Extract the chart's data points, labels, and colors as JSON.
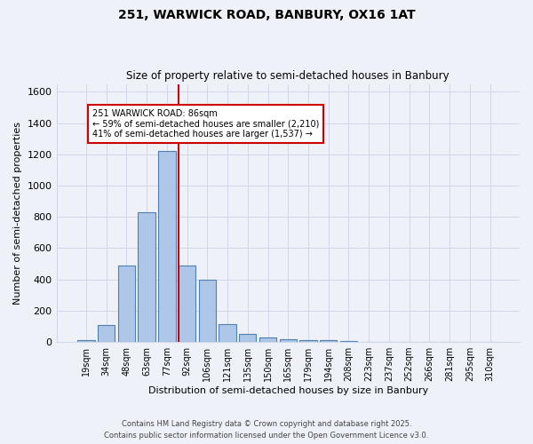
{
  "title1": "251, WARWICK ROAD, BANBURY, OX16 1AT",
  "title2": "Size of property relative to semi-detached houses in Banbury",
  "xlabel": "Distribution of semi-detached houses by size in Banbury",
  "ylabel": "Number of semi-detached properties",
  "categories": [
    "19sqm",
    "34sqm",
    "48sqm",
    "63sqm",
    "77sqm",
    "92sqm",
    "106sqm",
    "121sqm",
    "135sqm",
    "150sqm",
    "165sqm",
    "179sqm",
    "194sqm",
    "208sqm",
    "223sqm",
    "237sqm",
    "252sqm",
    "266sqm",
    "281sqm",
    "295sqm",
    "310sqm"
  ],
  "values": [
    10,
    110,
    490,
    830,
    1220,
    490,
    400,
    115,
    50,
    30,
    20,
    10,
    10,
    5,
    0,
    0,
    0,
    0,
    0,
    0,
    0
  ],
  "bar_color": "#aec6e8",
  "bar_edge_color": "#5080b0",
  "vline_x_idx": 5,
  "vline_color": "#cc0000",
  "annotation_title": "251 WARWICK ROAD: 86sqm",
  "annotation_line1": "← 59% of semi-detached houses are smaller (2,210)",
  "annotation_line2": "41% of semi-detached houses are larger (1,537) →",
  "annotation_box_color": "#ffffff",
  "annotation_box_edge": "#cc0000",
  "ylim": [
    0,
    1650
  ],
  "yticks": [
    0,
    200,
    400,
    600,
    800,
    1000,
    1200,
    1400,
    1600
  ],
  "grid_color": "#d0d8e8",
  "bg_color": "#eef2f8",
  "footnote1": "Contains HM Land Registry data © Crown copyright and database right 2025.",
  "footnote2": "Contains public sector information licensed under the Open Government Licence v3.0.",
  "bar_width": 0.85
}
